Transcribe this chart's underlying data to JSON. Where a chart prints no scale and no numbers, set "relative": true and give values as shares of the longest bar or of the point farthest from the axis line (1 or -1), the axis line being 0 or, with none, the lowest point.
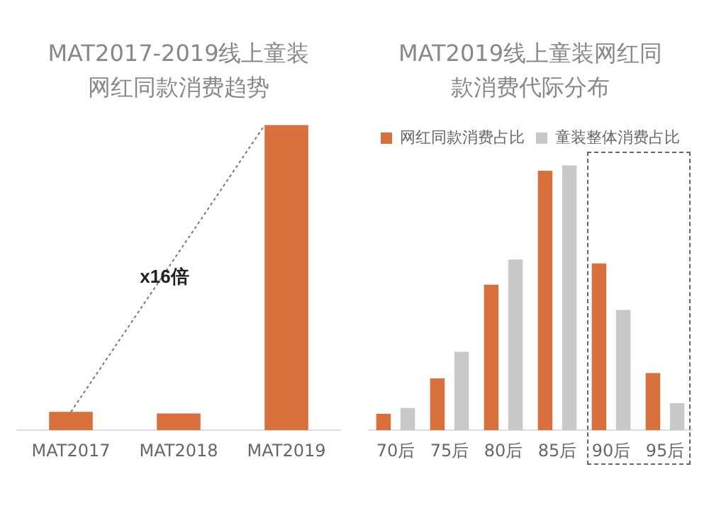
{
  "chart_data": [
    {
      "type": "bar",
      "title": "MAT2017-2019线上童装网红同款消费趋势",
      "categories": [
        "MAT2017",
        "MAT2018",
        "MAT2019"
      ],
      "relative": true,
      "grid": false,
      "legend": false,
      "tick_labels": "x",
      "series": [
        {
          "color": "#d9703c",
          "values": [
            0.06,
            0.055,
            1
          ]
        }
      ],
      "annotations": [
        "x16倍"
      ]
    },
    {
      "type": "bar",
      "title": "MAT2019线上童装网红同款消费代际分布",
      "categories": [
        "70后",
        "75后",
        "80后",
        "85后",
        "90后",
        "95后"
      ],
      "relative": true,
      "grid": false,
      "legend": "top",
      "tick_labels": "x",
      "series": [
        {
          "name": "网红同款消费占比",
          "color": "#d9703c",
          "values": [
            0.062,
            0.196,
            0.55,
            0.98,
            0.63,
            0.216
          ]
        },
        {
          "name": "童装整体消费占比",
          "color": "#c8c8c8",
          "values": [
            0.084,
            0.296,
            0.645,
            1,
            0.454,
            0.102
          ]
        }
      ]
    }
  ]
}
